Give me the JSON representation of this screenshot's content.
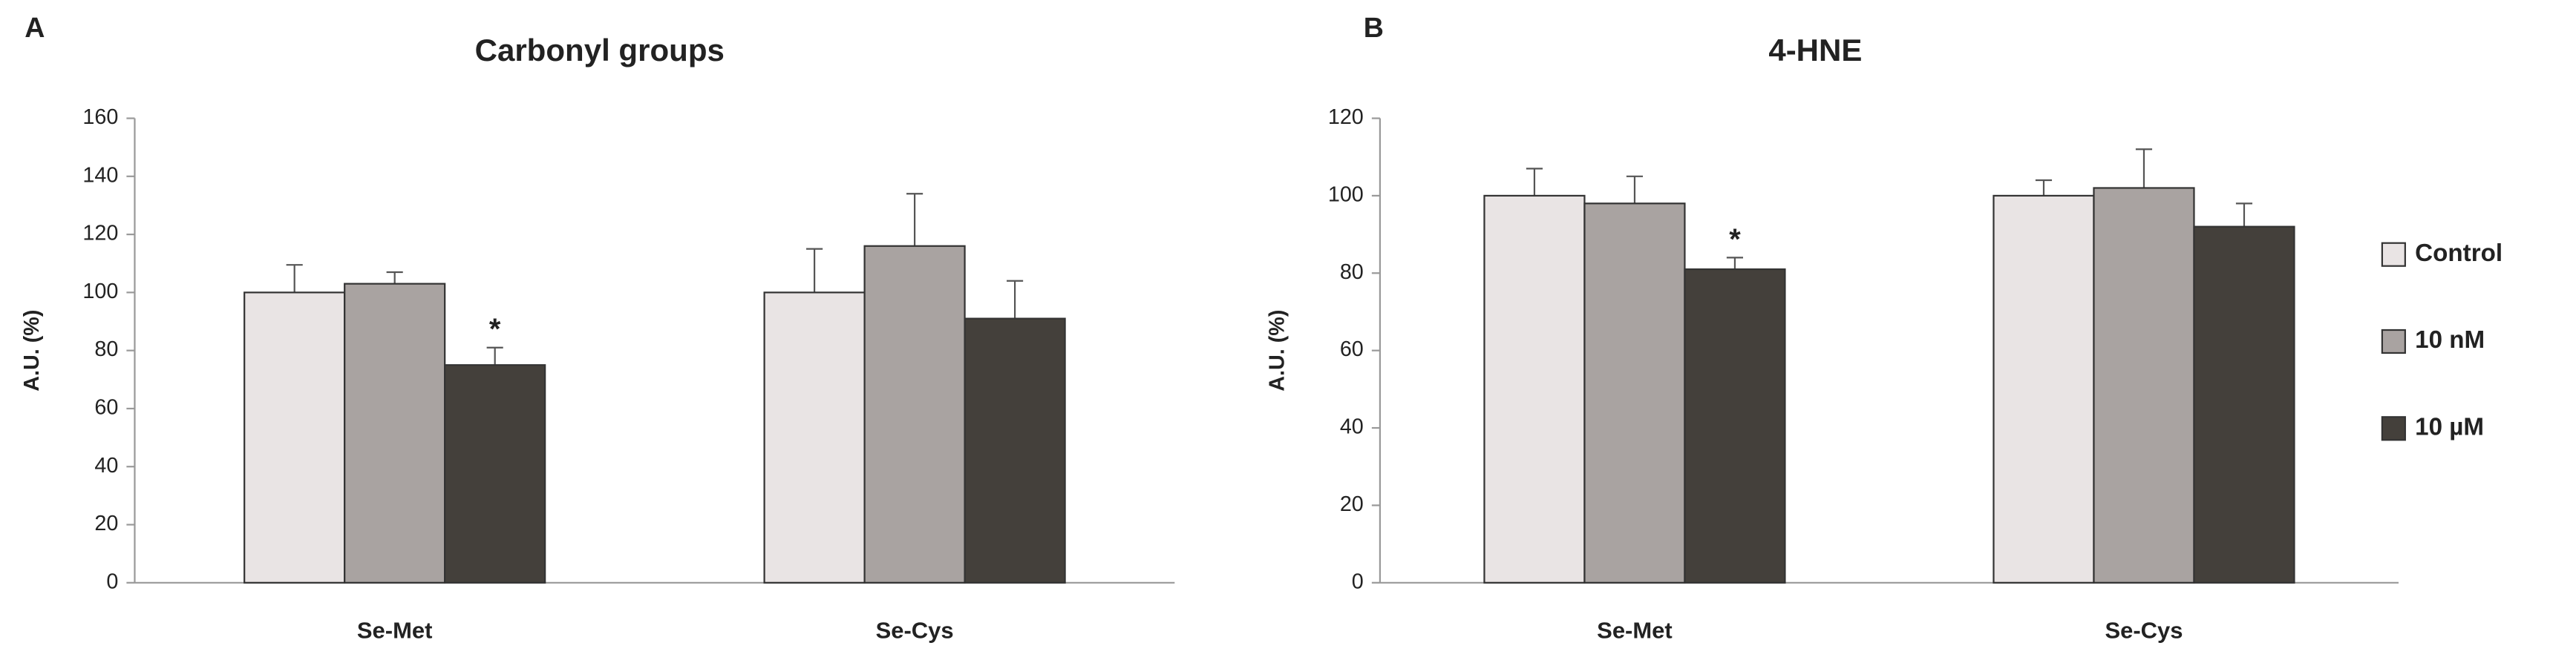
{
  "chart_data": [
    {
      "type": "bar",
      "label": "A",
      "title": "Carbonyl groups",
      "ylabel": "A.U. (%)",
      "categories": [
        "Se-Met",
        "Se-Cys"
      ],
      "series": [
        {
          "color": "#e9e4e4",
          "values": [
            100,
            100
          ],
          "errors": [
            9.5,
            15
          ]
        },
        {
          "color": "#a9a3a1",
          "values": [
            103,
            116
          ],
          "errors": [
            4,
            18
          ]
        },
        {
          "color": "#44403b",
          "values": [
            75,
            91
          ],
          "errors": [
            6,
            13
          ]
        }
      ],
      "annotations": [
        {
          "text": "*",
          "series": 2,
          "index": 0
        }
      ],
      "ylim": [
        0,
        160
      ],
      "yticks": [
        0,
        20,
        40,
        60,
        80,
        100,
        120,
        140,
        160
      ]
    },
    {
      "type": "bar",
      "label": "B",
      "title": "4-HNE",
      "ylabel": "A.U. (%)",
      "categories": [
        "Se-Met",
        "Se-Cys"
      ],
      "series": [
        {
          "name": "Control",
          "color": "#e9e4e4",
          "values": [
            100,
            100
          ],
          "errors": [
            7,
            4
          ]
        },
        {
          "name": "10 nM",
          "color": "#a9a3a1",
          "values": [
            98,
            102
          ],
          "errors": [
            7,
            10
          ]
        },
        {
          "name": "10 µM",
          "color": "#44403b",
          "values": [
            81,
            92
          ],
          "errors": [
            3,
            6
          ]
        }
      ],
      "annotations": [
        {
          "text": "*",
          "series": 2,
          "index": 0
        }
      ],
      "ylim": [
        0,
        120
      ],
      "yticks": [
        0,
        20,
        40,
        60,
        80,
        100,
        120
      ],
      "legend": "right"
    }
  ]
}
